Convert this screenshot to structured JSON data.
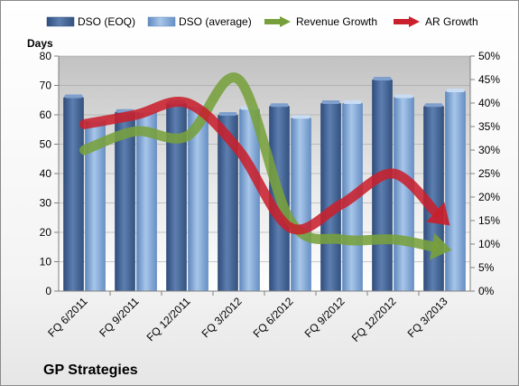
{
  "chart_data": {
    "type": "bar",
    "categories": [
      "FQ 6/2011",
      "FQ 9/2011",
      "FQ 12/2011",
      "FQ 3/2012",
      "FQ 6/2012",
      "FQ 9/2012",
      "FQ 12/2012",
      "FQ 3/2013"
    ],
    "series": [
      {
        "name": "DSO (EOQ)",
        "axis": "left",
        "kind": "bar",
        "color": "#4a6a9a",
        "values": [
          66,
          61,
          64,
          60,
          63,
          64,
          72,
          63
        ]
      },
      {
        "name": "DSO (average)",
        "axis": "left",
        "kind": "bar",
        "color": "#86aedd",
        "values": [
          58,
          61,
          63,
          62,
          59,
          64,
          66,
          68
        ]
      },
      {
        "name": "Revenue Growth",
        "axis": "right",
        "kind": "arrow-line",
        "color": "#77a03c",
        "values": [
          0.3,
          0.34,
          0.33,
          0.45,
          0.15,
          0.11,
          0.11,
          0.09
        ]
      },
      {
        "name": "AR Growth",
        "axis": "right",
        "kind": "arrow-line",
        "color": "#c8202c",
        "values": [
          0.355,
          0.375,
          0.4,
          0.3,
          0.135,
          0.185,
          0.25,
          0.15
        ]
      }
    ],
    "ylabel": "Days",
    "ylim": [
      0,
      80
    ],
    "yticks": [
      0,
      10,
      20,
      30,
      40,
      50,
      60,
      70,
      80
    ],
    "y2lim": [
      0,
      0.5
    ],
    "y2ticks": [
      "0%",
      "5%",
      "10%",
      "15%",
      "20%",
      "25%",
      "30%",
      "35%",
      "40%",
      "45%",
      "50%"
    ],
    "legend_position": "top",
    "plot_background_color": "#bdbdbd",
    "caption": "GP Strategies"
  }
}
